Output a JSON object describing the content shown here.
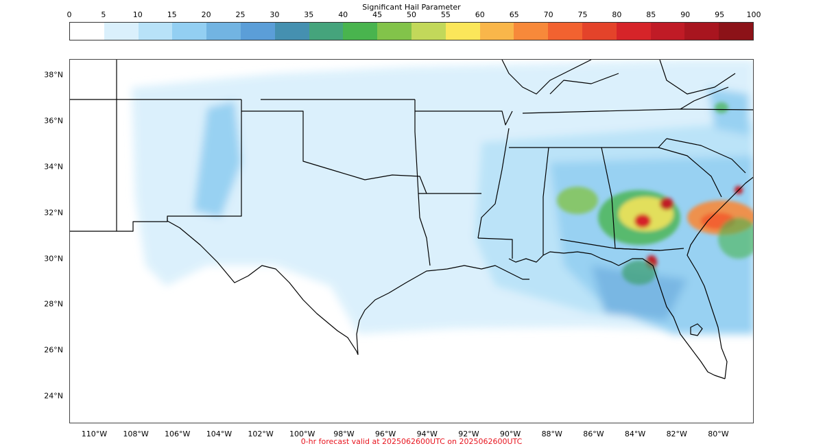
{
  "colorbar": {
    "title": "Significant Hail Parameter",
    "ticks": [
      "0",
      "5",
      "10",
      "15",
      "20",
      "25",
      "30",
      "35",
      "40",
      "45",
      "50",
      "55",
      "60",
      "65",
      "70",
      "75",
      "80",
      "85",
      "90",
      "95",
      "100"
    ],
    "colors": [
      "#ffffff",
      "#daf0fc",
      "#b8e2f8",
      "#93cff2",
      "#72b4e2",
      "#5b9ed8",
      "#4590b0",
      "#45a47c",
      "#49b44e",
      "#82c34a",
      "#c2d85a",
      "#fbe65a",
      "#f9b64a",
      "#f7893a",
      "#f26230",
      "#e4432a",
      "#d62429",
      "#c01b26",
      "#a8151f",
      "#8c1218"
    ]
  },
  "map": {
    "lat_range": [
      22.8,
      38.7
    ],
    "lon_range": [
      -111.2,
      -78.3
    ],
    "lat_labels": [
      "38°N",
      "36°N",
      "34°N",
      "32°N",
      "30°N",
      "28°N",
      "26°N",
      "24°N"
    ],
    "lat_values": [
      38,
      36,
      34,
      32,
      30,
      28,
      26,
      24
    ],
    "lon_labels": [
      "110°W",
      "108°W",
      "106°W",
      "104°W",
      "102°W",
      "100°W",
      "98°W",
      "96°W",
      "94°W",
      "92°W",
      "90°W",
      "88°W",
      "86°W",
      "84°W",
      "82°W",
      "80°W"
    ],
    "lon_values": [
      -110,
      -108,
      -106,
      -104,
      -102,
      -100,
      -98,
      -96,
      -94,
      -92,
      -90,
      -88,
      -86,
      -84,
      -82,
      -80
    ]
  },
  "footer": {
    "text": "0-hr forecast valid at 2025062600UTC on 2025062600UTC"
  }
}
